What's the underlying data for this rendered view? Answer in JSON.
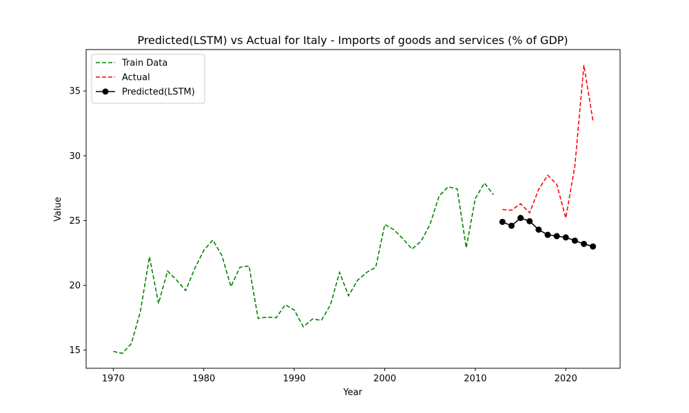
{
  "chart_data": {
    "type": "line",
    "title": "Predicted(LSTM) vs Actual for Italy - Imports of goods and services (% of GDP)",
    "xlabel": "Year",
    "ylabel": "Value",
    "xlim": [
      1967,
      2026
    ],
    "ylim": [
      13.6,
      38.2
    ],
    "xticks": [
      1970,
      1980,
      1990,
      2000,
      2010,
      2020
    ],
    "yticks": [
      15,
      20,
      25,
      30,
      35
    ],
    "grid": false,
    "legend_position": "top-left",
    "series": [
      {
        "name": "Train Data",
        "color": "#008000",
        "style": "dashed",
        "marker": "none",
        "x": [
          1970,
          1971,
          1972,
          1973,
          1974,
          1975,
          1976,
          1977,
          1978,
          1979,
          1980,
          1981,
          1982,
          1983,
          1984,
          1985,
          1986,
          1987,
          1988,
          1989,
          1990,
          1991,
          1992,
          1993,
          1994,
          1995,
          1996,
          1997,
          1998,
          1999,
          2000,
          2001,
          2002,
          2003,
          2004,
          2005,
          2006,
          2007,
          2008,
          2009,
          2010,
          2011,
          2012
        ],
        "y": [
          14.9,
          14.75,
          15.5,
          18.0,
          22.2,
          18.6,
          21.1,
          20.4,
          19.6,
          21.3,
          22.7,
          23.5,
          22.3,
          19.9,
          21.4,
          21.5,
          17.45,
          17.55,
          17.5,
          18.5,
          18.1,
          16.8,
          17.4,
          17.3,
          18.5,
          21.0,
          19.2,
          20.4,
          21.0,
          21.4,
          24.7,
          24.3,
          23.6,
          22.8,
          23.4,
          24.7,
          26.9,
          27.6,
          27.45,
          22.9,
          26.7,
          27.9,
          27.0
        ]
      },
      {
        "name": "Actual",
        "color": "#ff0000",
        "style": "dashed",
        "marker": "none",
        "x": [
          2013,
          2014,
          2015,
          2016,
          2017,
          2018,
          2019,
          2020,
          2021,
          2022,
          2023
        ],
        "y": [
          25.85,
          25.8,
          26.3,
          25.6,
          27.4,
          28.5,
          27.8,
          25.2,
          29.2,
          37.0,
          32.7
        ]
      },
      {
        "name": "Predicted(LSTM)",
        "color": "#000000",
        "style": "solid",
        "marker": "circle",
        "x": [
          2013,
          2014,
          2015,
          2016,
          2017,
          2018,
          2019,
          2020,
          2021,
          2022,
          2023
        ],
        "y": [
          24.9,
          24.6,
          25.2,
          24.95,
          24.3,
          23.9,
          23.8,
          23.7,
          23.45,
          23.2,
          23.0
        ]
      }
    ]
  }
}
